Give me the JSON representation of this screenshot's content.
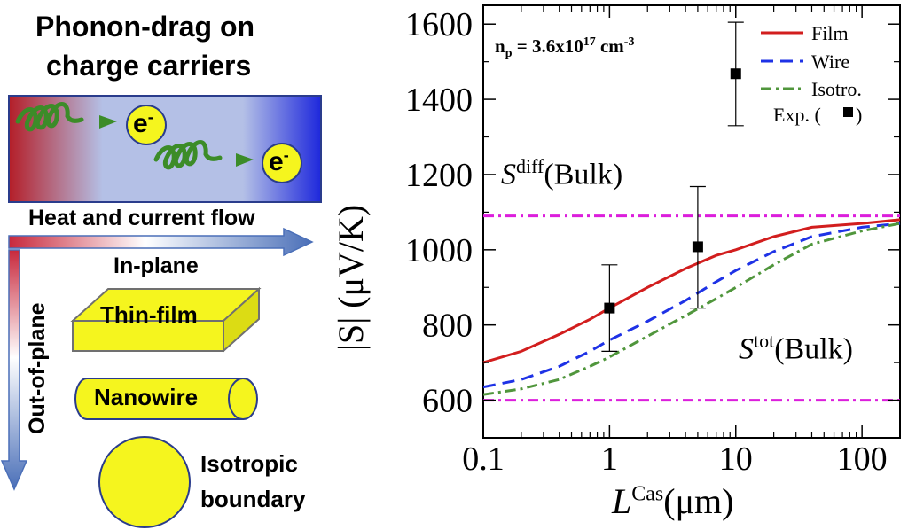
{
  "schematic": {
    "title_line1": "Phonon-drag on",
    "title_line2": "charge carriers",
    "carrier_label": "e",
    "carrier_sup": "-",
    "flow_label": "Heat and current flow",
    "in_plane_label": "In-plane",
    "out_of_plane_label": "Out-of-plane",
    "thin_film_label": "Thin-film",
    "nanowire_label": "Nanowire",
    "isotropic_line1": "Isotropic",
    "isotropic_line2": "boundary",
    "colors": {
      "hot": "#b41e28",
      "cold": "#1e28dc",
      "shape_fill": "#f5f51e",
      "arrow": "#4a6fb8",
      "phonon": "#3c8c28"
    }
  },
  "chart": {
    "density_prefix": "n",
    "density_sub": "p",
    "density_value": " = 3.6x10",
    "density_exp": "17",
    "density_unit": " cm",
    "density_unit_exp": "-3",
    "s_diff_label": "S",
    "s_diff_sup": "diff",
    "s_diff_suffix": "(Bulk)",
    "s_tot_label": "S",
    "s_tot_sup": "tot",
    "s_tot_suffix": "(Bulk)",
    "ylabel": "|S| (μV/K)",
    "xlabel_main": "L",
    "xlabel_sup": "Cas",
    "xlabel_unit": "(μm)",
    "exp_legend_label": "Exp. ("
  },
  "chart_data": {
    "type": "line",
    "x_scale": "log",
    "xlim": [
      0.1,
      200
    ],
    "ylim": [
      500,
      1650
    ],
    "xticks": [
      0.1,
      1,
      10,
      100
    ],
    "xtick_labels": [
      "0.1",
      "1",
      "10",
      "100"
    ],
    "yticks": [
      600,
      800,
      1000,
      1200,
      1400,
      1600
    ],
    "ytick_labels": [
      "600",
      "800",
      "1000",
      "1200",
      "1400",
      "1600"
    ],
    "legend_position": "top-right",
    "series": [
      {
        "name": "Film",
        "color": "#d21e1e",
        "style": "solid",
        "x": [
          0.1,
          0.2,
          0.4,
          0.7,
          1,
          2,
          4,
          7,
          10,
          20,
          40,
          100,
          200
        ],
        "y": [
          700,
          730,
          775,
          815,
          845,
          900,
          950,
          985,
          1000,
          1035,
          1060,
          1070,
          1080
        ]
      },
      {
        "name": "Wire",
        "color": "#1e32e6",
        "style": "dashed",
        "x": [
          0.1,
          0.2,
          0.4,
          0.7,
          1,
          2,
          4,
          7,
          10,
          20,
          40,
          100,
          200
        ],
        "y": [
          635,
          655,
          690,
          730,
          760,
          810,
          865,
          915,
          945,
          995,
          1035,
          1060,
          1070
        ]
      },
      {
        "name": "Isotro.",
        "color": "#50963c",
        "style": "dashdot",
        "x": [
          0.1,
          0.2,
          0.4,
          0.7,
          1,
          2,
          4,
          7,
          10,
          20,
          40,
          100,
          200
        ],
        "y": [
          615,
          630,
          655,
          690,
          715,
          770,
          825,
          870,
          900,
          960,
          1015,
          1050,
          1070
        ]
      }
    ],
    "reference_lines": [
      {
        "name": "S_diff(Bulk)",
        "y": 1090,
        "color": "#dc1edc",
        "style": "dashdot"
      },
      {
        "name": "S_tot(Bulk)",
        "y": 600,
        "color": "#dc1edc",
        "style": "dashdot"
      }
    ],
    "experimental": {
      "name": "Exp.",
      "points": [
        {
          "x": 1,
          "y": 845,
          "ylow": 730,
          "yhigh": 960
        },
        {
          "x": 5,
          "y": 1008,
          "ylow": 845,
          "yhigh": 1168
        },
        {
          "x": 10,
          "y": 1468,
          "ylow": 1330,
          "yhigh": 1605
        }
      ]
    }
  }
}
